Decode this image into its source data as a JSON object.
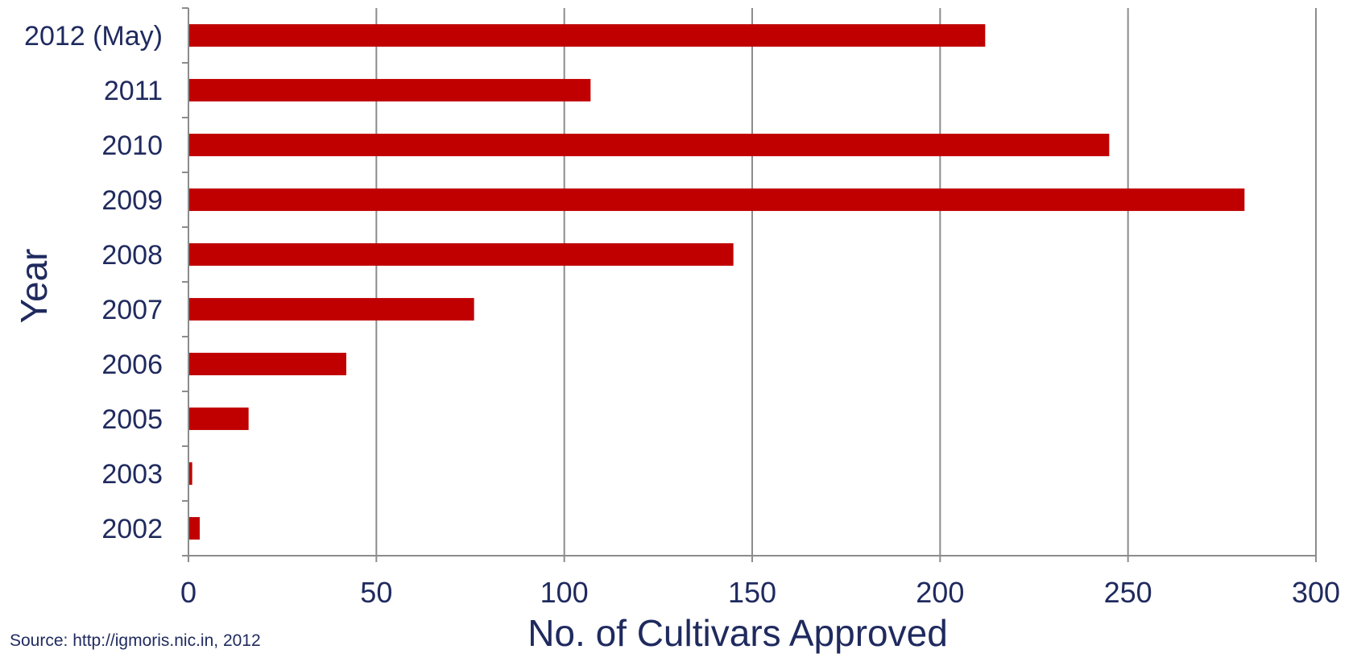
{
  "chart_data": {
    "type": "bar",
    "orientation": "horizontal",
    "categories": [
      "2012 (May)",
      "2011",
      "2010",
      "2009",
      "2008",
      "2007",
      "2006",
      "2005",
      "2003",
      "2002"
    ],
    "values": [
      212,
      107,
      245,
      281,
      145,
      76,
      42,
      16,
      1,
      3
    ],
    "xlabel": "No. of Cultivars Approved",
    "ylabel": "Year",
    "xlim": [
      0,
      300
    ],
    "xticks": [
      0,
      50,
      100,
      150,
      200,
      250,
      300
    ],
    "grid": "vertical",
    "legend": "none",
    "bar_color": "#c00000"
  },
  "source": "Source: http://igmoris.nic.in, 2012"
}
